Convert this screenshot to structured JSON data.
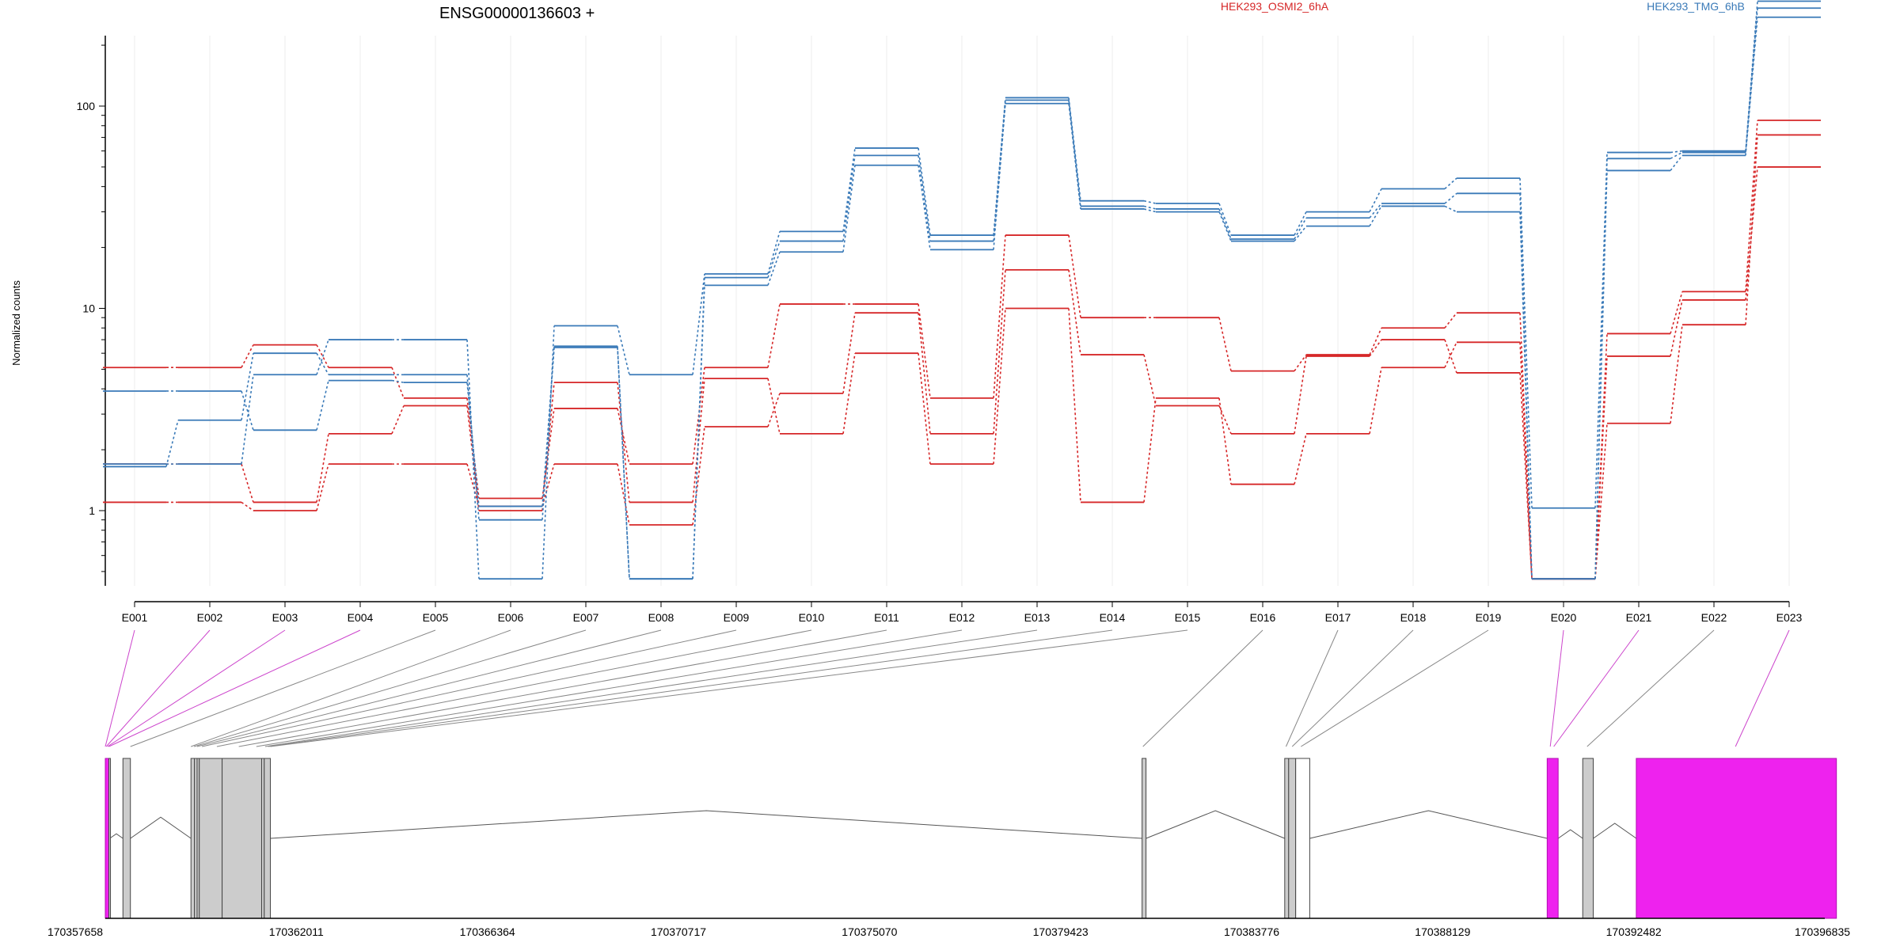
{
  "chart_data": {
    "type": "line",
    "title": "ENSG00000136603 +",
    "ylabel": "Normalized counts",
    "yscale": "log",
    "ylim": [
      0.3,
      420
    ],
    "yticks": [
      1,
      10,
      100
    ],
    "ytick_labels": [
      "1",
      "10",
      "100"
    ],
    "categories": [
      "E001",
      "E002",
      "E003",
      "E004",
      "E005",
      "E006",
      "E007",
      "E008",
      "E009",
      "E010",
      "E011",
      "E012",
      "E013",
      "E014",
      "E015",
      "E016",
      "E017",
      "E018",
      "E019",
      "E020",
      "E021",
      "E022",
      "E023"
    ],
    "groups": [
      {
        "name": "HEK293_OSMI2_6hA",
        "color": "#d62728"
      },
      {
        "name": "HEK293_TMG_6hB",
        "color": "#3a7ab8"
      }
    ],
    "series": [
      {
        "group": 0,
        "values": [
          5.1,
          5.1,
          6.6,
          5.1,
          3.6,
          1.15,
          3.2,
          1.7,
          5.1,
          10.5,
          10.5,
          3.6,
          23,
          9.0,
          9.0,
          4.9,
          5.9,
          8.0,
          9.5,
          0.46,
          7.5,
          12.1,
          85
        ]
      },
      {
        "group": 0,
        "values": [
          1.1,
          1.1,
          1.0,
          1.7,
          1.7,
          1.05,
          1.7,
          0.85,
          2.6,
          3.8,
          9.5,
          2.4,
          15.5,
          5.9,
          3.3,
          2.4,
          5.8,
          7.0,
          4.8,
          0.46,
          2.7,
          8.3,
          72
        ]
      },
      {
        "group": 0,
        "values": [
          1.7,
          1.7,
          1.1,
          2.4,
          3.3,
          1.0,
          4.3,
          1.1,
          4.5,
          2.4,
          6.0,
          1.7,
          10.0,
          1.1,
          3.6,
          1.35,
          2.4,
          5.1,
          6.8,
          0.46,
          5.8,
          11.0,
          50
        ]
      },
      {
        "group": 1,
        "values": [
          1.7,
          1.7,
          4.7,
          7.0,
          7.0,
          0.46,
          8.2,
          4.7,
          14.8,
          24,
          62,
          23,
          110,
          34,
          33,
          23,
          30,
          39,
          44,
          1.03,
          59,
          60,
          330
        ]
      },
      {
        "group": 1,
        "values": [
          1.65,
          2.8,
          6.0,
          4.7,
          4.7,
          0.9,
          6.5,
          0.46,
          14.2,
          21.5,
          57,
          21.5,
          107,
          32,
          31,
          22,
          28,
          33,
          37,
          0.46,
          55,
          59,
          305
        ]
      },
      {
        "group": 1,
        "values": [
          3.9,
          3.9,
          2.5,
          4.4,
          4.3,
          1.05,
          6.4,
          0.46,
          13.0,
          19.0,
          51,
          19.5,
          103,
          31,
          30,
          21.5,
          25.5,
          32,
          30,
          0.46,
          48,
          57,
          275
        ]
      }
    ],
    "xtick_labels": [
      "170357658",
      "170362011",
      "170366364",
      "170370717",
      "170375070",
      "170379423",
      "170383776",
      "170388129",
      "170392482",
      "170396835"
    ],
    "genomic_range": [
      170357658,
      170396835
    ],
    "highlight_color": "#ee22ee",
    "exon_color": "#cccccc",
    "exons": [
      {
        "start": 170357658,
        "end": 170357740,
        "hl": true
      },
      {
        "start": 170357740,
        "end": 170357760,
        "hl": false
      },
      {
        "start": 170358060,
        "end": 170358230,
        "hl": false
      },
      {
        "start": 170359610,
        "end": 170359690,
        "hl": false
      },
      {
        "start": 170359690,
        "end": 170359750,
        "hl": false
      },
      {
        "start": 170359750,
        "end": 170359800,
        "hl": false
      },
      {
        "start": 170359800,
        "end": 170360320,
        "hl": false
      },
      {
        "start": 170360320,
        "end": 170361220,
        "hl": false
      },
      {
        "start": 170361220,
        "end": 170361280,
        "hl": false
      },
      {
        "start": 170361280,
        "end": 170361420,
        "hl": false
      },
      {
        "start": 170381280,
        "end": 170381370,
        "hl": false
      },
      {
        "start": 170384530,
        "end": 170384620,
        "hl": false
      },
      {
        "start": 170384620,
        "end": 170384780,
        "hl": false
      },
      {
        "start": 170384780,
        "end": 170385100,
        "hl": false,
        "white": true
      },
      {
        "start": 170390510,
        "end": 170390760,
        "hl": true
      },
      {
        "start": 170391320,
        "end": 170391560,
        "hl": false
      },
      {
        "start": 170392540,
        "end": 170397100,
        "hl": true
      }
    ],
    "connector_targets": [
      170357658,
      170357680,
      170357710,
      170357740,
      170358230,
      170359610,
      170359680,
      170359750,
      170359860,
      170360200,
      170360700,
      170361100,
      170361300,
      170361370,
      170361420,
      170381300,
      170384560,
      170384700,
      170384900,
      170390580,
      170390660,
      170391420,
      170394800
    ],
    "connector_highlight": [
      true,
      true,
      true,
      true,
      false,
      false,
      false,
      false,
      false,
      false,
      false,
      false,
      false,
      false,
      false,
      false,
      false,
      false,
      false,
      true,
      true,
      false,
      true
    ]
  }
}
